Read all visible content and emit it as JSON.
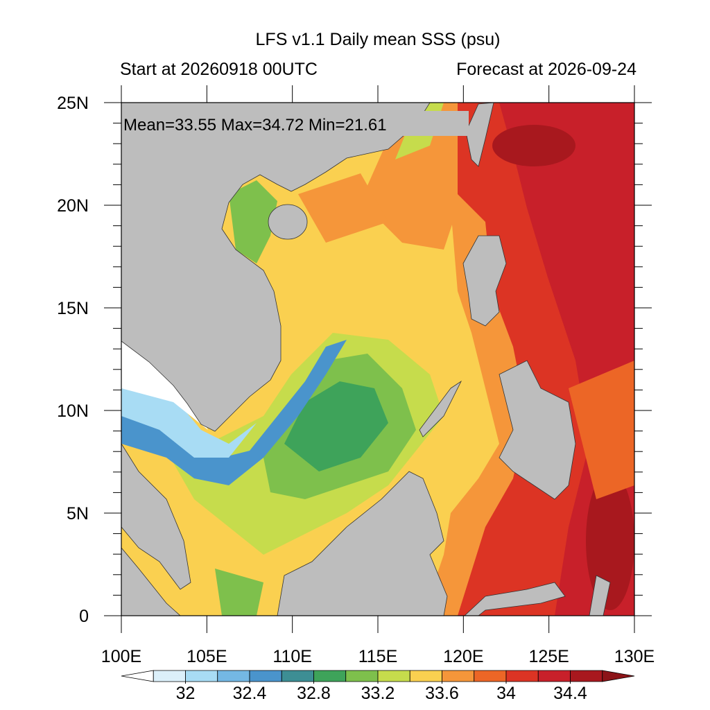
{
  "header": {
    "title": "LFS v1.1 Daily mean SSS (psu)",
    "start": "Start at 20260918 00UTC",
    "forecast": "Forecast at 2026-09-24"
  },
  "map": {
    "stats": "Mean=33.55  Max=34.72  Min=21.61",
    "lonlim": [
      100,
      130
    ],
    "latlim": [
      0,
      25
    ],
    "lon_ticks": [
      {
        "value": 100,
        "label": "100E"
      },
      {
        "value": 105,
        "label": "105E"
      },
      {
        "value": 110,
        "label": "110E"
      },
      {
        "value": 115,
        "label": "115E"
      },
      {
        "value": 120,
        "label": "120E"
      },
      {
        "value": 125,
        "label": "125E"
      },
      {
        "value": 130,
        "label": "130E"
      }
    ],
    "lat_ticks": [
      {
        "value": 0,
        "label": "0"
      },
      {
        "value": 5,
        "label": "5N"
      },
      {
        "value": 10,
        "label": "10N"
      },
      {
        "value": 15,
        "label": "15N"
      },
      {
        "value": 20,
        "label": "20N"
      },
      {
        "value": 25,
        "label": "25N"
      }
    ]
  },
  "colorbar": {
    "clim": [
      31.8,
      34.6
    ],
    "colors": [
      "#ffffff",
      "#dcf0fa",
      "#a8dcf4",
      "#74b8e4",
      "#4a94cc",
      "#3d8e94",
      "#3ea35a",
      "#7ec04c",
      "#c6dc4c",
      "#fad050",
      "#f5963a",
      "#ec6626",
      "#dc3424",
      "#c8202a",
      "#a8181e",
      "#8c1418"
    ],
    "ticks": [
      32,
      {
        "value": 32.4,
        "label": "32.4"
      },
      {
        "value": 32.8,
        "label": "32.8"
      },
      {
        "value": 33.2,
        "label": "33.2"
      },
      {
        "value": 33.6,
        "label": "33.6"
      },
      34,
      {
        "value": 34.4,
        "label": "34.4"
      }
    ]
  }
}
